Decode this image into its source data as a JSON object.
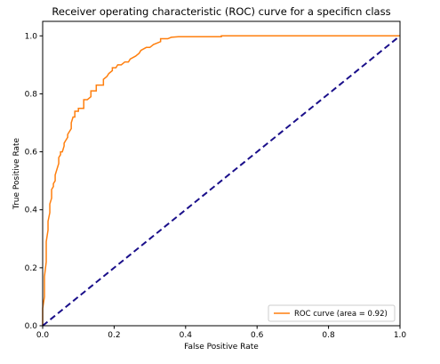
{
  "chart_data": {
    "type": "line",
    "title": "Receiver operating characteristic (ROC) curve for a specificn class",
    "xlabel": "False Positive Rate",
    "ylabel": "True Positive Rate",
    "xlim": [
      0.0,
      1.0
    ],
    "ylim": [
      0.0,
      1.05
    ],
    "xticks": [
      "0.0",
      "0.2",
      "0.4",
      "0.6",
      "0.8",
      "1.0"
    ],
    "yticks": [
      "0.0",
      "0.2",
      "0.4",
      "0.6",
      "0.8",
      "1.0"
    ],
    "grid": false,
    "legend_position": "lower-right",
    "series": [
      {
        "name": "ROC curve (area = 0.92)",
        "color": "#ff7f0e",
        "style": "solid",
        "x": [
          0.0,
          0.0,
          0.005,
          0.005,
          0.01,
          0.01,
          0.015,
          0.015,
          0.02,
          0.02,
          0.025,
          0.025,
          0.03,
          0.03,
          0.035,
          0.035,
          0.04,
          0.045,
          0.045,
          0.05,
          0.05,
          0.055,
          0.06,
          0.06,
          0.065,
          0.07,
          0.07,
          0.075,
          0.08,
          0.08,
          0.085,
          0.09,
          0.09,
          0.1,
          0.1,
          0.115,
          0.115,
          0.125,
          0.135,
          0.135,
          0.15,
          0.15,
          0.17,
          0.17,
          0.18,
          0.185,
          0.195,
          0.195,
          0.205,
          0.21,
          0.22,
          0.23,
          0.24,
          0.245,
          0.26,
          0.27,
          0.275,
          0.29,
          0.3,
          0.31,
          0.33,
          0.33,
          0.35,
          0.36,
          0.38,
          0.5,
          0.5,
          1.0
        ],
        "y": [
          0.0,
          0.06,
          0.1,
          0.17,
          0.22,
          0.29,
          0.33,
          0.36,
          0.39,
          0.42,
          0.44,
          0.47,
          0.48,
          0.49,
          0.5,
          0.52,
          0.54,
          0.56,
          0.58,
          0.59,
          0.6,
          0.6,
          0.62,
          0.63,
          0.64,
          0.65,
          0.66,
          0.67,
          0.68,
          0.7,
          0.72,
          0.72,
          0.74,
          0.74,
          0.75,
          0.75,
          0.78,
          0.78,
          0.79,
          0.81,
          0.81,
          0.83,
          0.83,
          0.85,
          0.86,
          0.87,
          0.88,
          0.89,
          0.89,
          0.9,
          0.9,
          0.91,
          0.91,
          0.92,
          0.93,
          0.94,
          0.95,
          0.96,
          0.96,
          0.97,
          0.98,
          0.99,
          0.99,
          0.995,
          0.997,
          0.997,
          1.0,
          1.0
        ]
      },
      {
        "name": "",
        "color": "#1a0f8a",
        "style": "dashed",
        "x": [
          0.0,
          1.0
        ],
        "y": [
          0.0,
          1.0
        ]
      }
    ]
  }
}
